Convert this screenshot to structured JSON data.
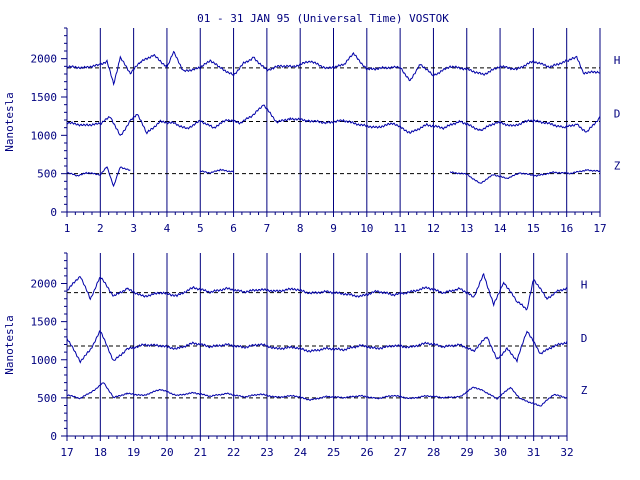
{
  "title": "01 - 31 JAN 95 (Universal Time) VOSTOK",
  "colors": {
    "ink": "#00007f",
    "trace": "#0000a8",
    "background": "#ffffff"
  },
  "chart_data": [
    {
      "type": "line",
      "ylabel": "Nanotesla",
      "xlim": [
        1,
        17
      ],
      "ylim": [
        0,
        2400
      ],
      "x_ticks": [
        "1",
        "2",
        "3",
        "4",
        "5",
        "6",
        "7",
        "8",
        "9",
        "10",
        "11",
        "12",
        "13",
        "14",
        "15",
        "16",
        "17"
      ],
      "y_ticks": [
        "0",
        "500",
        "1000",
        "1500",
        "2000"
      ],
      "grid": "vertical lines at each day",
      "series": [
        {
          "name": "H",
          "baseline": 1880,
          "points": [
            [
              1,
              1880
            ],
            [
              1.5,
              1860
            ],
            [
              2,
              1900
            ],
            [
              2.2,
              1950
            ],
            [
              2.4,
              1650
            ],
            [
              2.6,
              2000
            ],
            [
              2.9,
              1800
            ],
            [
              3.2,
              1950
            ],
            [
              3.6,
              2050
            ],
            [
              4,
              1900
            ],
            [
              4.2,
              2100
            ],
            [
              4.5,
              1850
            ],
            [
              5,
              1900
            ],
            [
              5.3,
              2000
            ],
            [
              5.6,
              1900
            ],
            [
              6,
              1800
            ],
            [
              6.3,
              1950
            ],
            [
              6.6,
              2020
            ],
            [
              7,
              1850
            ],
            [
              7.4,
              1900
            ],
            [
              7.8,
              1880
            ],
            [
              8.3,
              1950
            ],
            [
              8.8,
              1850
            ],
            [
              9.3,
              1900
            ],
            [
              9.6,
              2050
            ],
            [
              10,
              1850
            ],
            [
              10.5,
              1880
            ],
            [
              11,
              1900
            ],
            [
              11.3,
              1720
            ],
            [
              11.6,
              1950
            ],
            [
              12,
              1800
            ],
            [
              12.5,
              1920
            ],
            [
              13,
              1880
            ],
            [
              13.5,
              1800
            ],
            [
              14,
              1900
            ],
            [
              14.5,
              1850
            ],
            [
              15,
              1950
            ],
            [
              15.5,
              1870
            ],
            [
              16,
              1950
            ],
            [
              16.3,
              2000
            ],
            [
              16.5,
              1800
            ],
            [
              17,
              1820
            ]
          ]
        },
        {
          "name": "D",
          "baseline": 1180,
          "points": [
            [
              1,
              1150
            ],
            [
              1.5,
              1120
            ],
            [
              2,
              1150
            ],
            [
              2.3,
              1250
            ],
            [
              2.6,
              1000
            ],
            [
              2.9,
              1200
            ],
            [
              3.1,
              1300
            ],
            [
              3.4,
              1050
            ],
            [
              3.8,
              1200
            ],
            [
              4.2,
              1180
            ],
            [
              4.6,
              1100
            ],
            [
              5,
              1200
            ],
            [
              5.4,
              1100
            ],
            [
              5.8,
              1200
            ],
            [
              6.2,
              1150
            ],
            [
              6.6,
              1250
            ],
            [
              6.9,
              1380
            ],
            [
              7.3,
              1150
            ],
            [
              7.7,
              1200
            ],
            [
              8.2,
              1180
            ],
            [
              8.8,
              1160
            ],
            [
              9.3,
              1200
            ],
            [
              9.8,
              1150
            ],
            [
              10.3,
              1120
            ],
            [
              10.8,
              1180
            ],
            [
              11.3,
              1050
            ],
            [
              11.8,
              1150
            ],
            [
              12.3,
              1100
            ],
            [
              12.8,
              1180
            ],
            [
              13.4,
              1050
            ],
            [
              13.9,
              1150
            ],
            [
              14.4,
              1100
            ],
            [
              14.9,
              1180
            ],
            [
              15.4,
              1150
            ],
            [
              15.9,
              1100
            ],
            [
              16.3,
              1150
            ],
            [
              16.6,
              1050
            ],
            [
              17,
              1250
            ]
          ]
        },
        {
          "name": "Z",
          "baseline": 500,
          "segments": [
            [
              [
                1,
                520
              ],
              [
                1.3,
                480
              ],
              [
                1.6,
                520
              ],
              [
                2,
                500
              ],
              [
                2.2,
                600
              ],
              [
                2.4,
                350
              ],
              [
                2.6,
                600
              ],
              [
                2.9,
                550
              ]
            ],
            [
              [
                5,
                520
              ],
              [
                5.3,
                500
              ],
              [
                5.6,
                540
              ],
              [
                6,
                520
              ]
            ],
            [
              [
                12.5,
                520
              ],
              [
                13,
                500
              ],
              [
                13.4,
                380
              ],
              [
                13.8,
                500
              ],
              [
                14.2,
                450
              ],
              [
                14.6,
                520
              ],
              [
                15.1,
                480
              ],
              [
                15.6,
                520
              ],
              [
                16.1,
                500
              ],
              [
                16.6,
                540
              ],
              [
                17,
                520
              ]
            ]
          ]
        }
      ]
    },
    {
      "type": "line",
      "ylabel": "Nanotesla",
      "xlim": [
        17,
        32
      ],
      "ylim": [
        0,
        2400
      ],
      "x_ticks": [
        "17",
        "18",
        "19",
        "20",
        "21",
        "22",
        "23",
        "24",
        "25",
        "26",
        "27",
        "28",
        "29",
        "30",
        "31",
        "32"
      ],
      "y_ticks": [
        "0",
        "500",
        "1000",
        "1500",
        "2000"
      ],
      "grid": "vertical lines at each day",
      "series": [
        {
          "name": "H",
          "baseline": 1880,
          "points": [
            [
              17,
              1900
            ],
            [
              17.4,
              2100
            ],
            [
              17.7,
              1800
            ],
            [
              18,
              2100
            ],
            [
              18.4,
              1850
            ],
            [
              18.8,
              1950
            ],
            [
              19.3,
              1850
            ],
            [
              19.8,
              1900
            ],
            [
              20.3,
              1850
            ],
            [
              20.8,
              1950
            ],
            [
              21.3,
              1880
            ],
            [
              21.8,
              1920
            ],
            [
              22.3,
              1870
            ],
            [
              22.8,
              1900
            ],
            [
              23.3,
              1880
            ],
            [
              23.8,
              1920
            ],
            [
              24.3,
              1870
            ],
            [
              24.8,
              1900
            ],
            [
              25.3,
              1880
            ],
            [
              25.8,
              1850
            ],
            [
              26.3,
              1920
            ],
            [
              26.8,
              1870
            ],
            [
              27.3,
              1900
            ],
            [
              27.8,
              1950
            ],
            [
              28.3,
              1870
            ],
            [
              28.8,
              1920
            ],
            [
              29.2,
              1800
            ],
            [
              29.5,
              2100
            ],
            [
              29.8,
              1700
            ],
            [
              30.1,
              2000
            ],
            [
              30.5,
              1750
            ],
            [
              30.8,
              1650
            ],
            [
              31,
              2050
            ],
            [
              31.4,
              1800
            ],
            [
              31.7,
              1900
            ],
            [
              32,
              1950
            ]
          ]
        },
        {
          "name": "D",
          "baseline": 1180,
          "points": [
            [
              17,
              1300
            ],
            [
              17.4,
              1000
            ],
            [
              17.7,
              1150
            ],
            [
              18,
              1400
            ],
            [
              18.4,
              1000
            ],
            [
              18.8,
              1150
            ],
            [
              19.3,
              1200
            ],
            [
              19.8,
              1180
            ],
            [
              20.3,
              1130
            ],
            [
              20.8,
              1200
            ],
            [
              21.3,
              1150
            ],
            [
              21.8,
              1180
            ],
            [
              22.3,
              1150
            ],
            [
              22.8,
              1200
            ],
            [
              23.3,
              1150
            ],
            [
              23.8,
              1180
            ],
            [
              24.3,
              1130
            ],
            [
              24.8,
              1170
            ],
            [
              25.3,
              1150
            ],
            [
              25.8,
              1200
            ],
            [
              26.3,
              1150
            ],
            [
              26.8,
              1180
            ],
            [
              27.3,
              1150
            ],
            [
              27.8,
              1200
            ],
            [
              28.3,
              1150
            ],
            [
              28.8,
              1180
            ],
            [
              29.2,
              1100
            ],
            [
              29.6,
              1300
            ],
            [
              29.9,
              1000
            ],
            [
              30.2,
              1150
            ],
            [
              30.5,
              1000
            ],
            [
              30.8,
              1400
            ],
            [
              31.2,
              1100
            ],
            [
              31.6,
              1200
            ],
            [
              32,
              1250
            ]
          ]
        },
        {
          "name": "Z",
          "baseline": 500,
          "points": [
            [
              17,
              550
            ],
            [
              17.4,
              500
            ],
            [
              17.8,
              600
            ],
            [
              18.1,
              700
            ],
            [
              18.4,
              500
            ],
            [
              18.8,
              550
            ],
            [
              19.3,
              520
            ],
            [
              19.8,
              600
            ],
            [
              20.3,
              520
            ],
            [
              20.8,
              560
            ],
            [
              21.3,
              520
            ],
            [
              21.8,
              560
            ],
            [
              22.3,
              520
            ],
            [
              22.8,
              560
            ],
            [
              23.3,
              520
            ],
            [
              23.8,
              540
            ],
            [
              24.3,
              480
            ],
            [
              24.8,
              520
            ],
            [
              25.3,
              500
            ],
            [
              25.8,
              520
            ],
            [
              26.3,
              480
            ],
            [
              26.8,
              520
            ],
            [
              27.3,
              480
            ],
            [
              27.8,
              520
            ],
            [
              28.3,
              500
            ],
            [
              28.8,
              520
            ],
            [
              29.2,
              650
            ],
            [
              29.5,
              600
            ],
            [
              29.9,
              500
            ],
            [
              30.3,
              650
            ],
            [
              30.6,
              500
            ],
            [
              30.9,
              450
            ],
            [
              31.2,
              400
            ],
            [
              31.6,
              550
            ],
            [
              32,
              500
            ]
          ]
        }
      ]
    }
  ]
}
